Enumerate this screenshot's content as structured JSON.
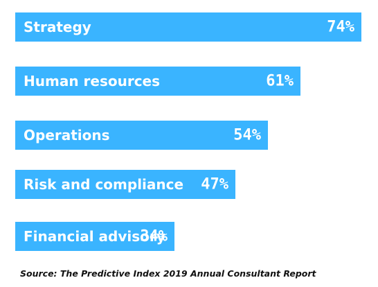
{
  "chart_data": {
    "type": "bar",
    "orientation": "horizontal",
    "categories": [
      "Strategy",
      "Human resources",
      "Operations",
      "Risk and compliance",
      "Financial advisory"
    ],
    "values": [
      74,
      61,
      54,
      47,
      34
    ],
    "value_labels": [
      "74%",
      "61%",
      "54%",
      "47%",
      "34%"
    ],
    "unit": "%",
    "xlim": [
      0,
      74
    ],
    "grid": false,
    "legend": "none",
    "bar_color": "#3ab4ff",
    "label_color": "#ffffff"
  },
  "source": "Source: The Predictive Index 2019 Annual Consultant Report"
}
